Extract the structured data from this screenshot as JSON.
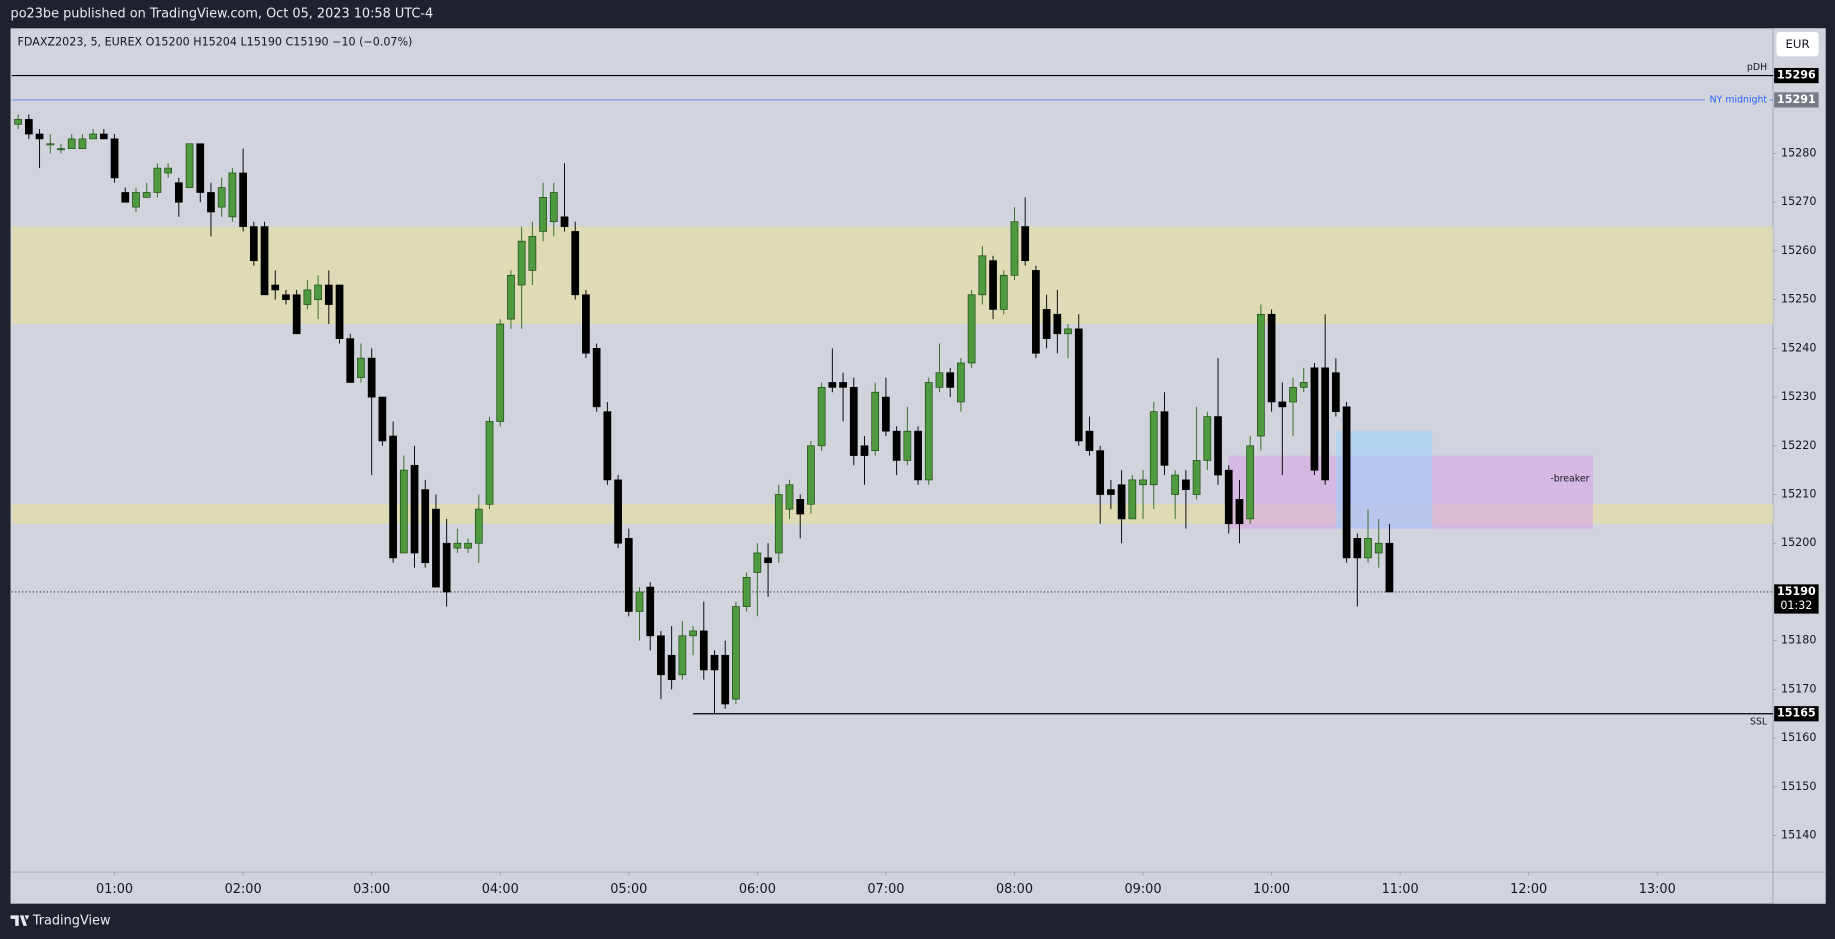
{
  "header": {
    "title": "po23be published on TradingView.com, Oct 05, 2023 10:58 UTC-4"
  },
  "footer": {
    "brand": "TradingView"
  },
  "chart_data": {
    "type": "candlestick",
    "legend": "FDAXZ2023, 5, EUREX  O15200  H15204  L15190  C15190  −10 (−0.07%)",
    "currency": "EUR",
    "up_color": "#4f9a3e",
    "down_color": "#000000",
    "x": [
      "00:15",
      "00:20",
      "00:25",
      "00:30",
      "00:35",
      "00:40",
      "00:45",
      "00:50",
      "00:55",
      "01:00",
      "01:05",
      "01:10",
      "01:15",
      "01:20",
      "01:25",
      "01:30",
      "01:35",
      "01:40",
      "01:45",
      "01:50",
      "01:55",
      "02:00",
      "02:05",
      "02:10",
      "02:15",
      "02:20",
      "02:25",
      "02:30",
      "02:35",
      "02:40",
      "02:45",
      "02:50",
      "02:55",
      "03:00",
      "03:05",
      "03:10",
      "03:15",
      "03:20",
      "03:25",
      "03:30",
      "03:35",
      "03:40",
      "03:45",
      "03:50",
      "03:55",
      "04:00",
      "04:05",
      "04:10",
      "04:15",
      "04:20",
      "04:25",
      "04:30",
      "04:35",
      "04:40",
      "04:45",
      "04:50",
      "04:55",
      "05:00",
      "05:05",
      "05:10",
      "05:15",
      "05:20",
      "05:25",
      "05:30",
      "05:35",
      "05:40",
      "05:45",
      "05:50",
      "05:55",
      "06:00",
      "06:05",
      "06:10",
      "06:15",
      "06:20",
      "06:25",
      "06:30",
      "06:35",
      "06:40",
      "06:45",
      "06:50",
      "06:55",
      "07:00",
      "07:05",
      "07:10",
      "07:15",
      "07:20",
      "07:25",
      "07:30",
      "07:35",
      "07:40",
      "07:45",
      "07:50",
      "07:55",
      "08:00",
      "08:05",
      "08:10",
      "08:15",
      "08:20",
      "08:25",
      "08:30",
      "08:35",
      "08:40",
      "08:45",
      "08:50",
      "08:55",
      "09:00",
      "09:05",
      "09:10",
      "09:15",
      "09:20",
      "09:25",
      "09:30",
      "09:35",
      "09:40",
      "09:45",
      "09:50",
      "09:55",
      "10:00",
      "10:05",
      "10:10",
      "10:15",
      "10:20",
      "10:25",
      "10:30",
      "10:35",
      "10:40",
      "10:45",
      "10:50",
      "10:55"
    ],
    "open": [
      15286,
      15287,
      15284,
      15282,
      15281,
      15281,
      15281,
      15283,
      15284,
      15283,
      15272,
      15269,
      15271,
      15272,
      15276,
      15274,
      15273,
      15282,
      15272,
      15269,
      15267,
      15276,
      15265,
      15265,
      15253,
      15251,
      15251,
      15249,
      15250,
      15253,
      15253,
      15242,
      15234,
      15238,
      15230,
      15222,
      15198,
      15216,
      15211,
      15207,
      15200,
      15199,
      15199,
      15200,
      15208,
      15225,
      15246,
      15253,
      15256,
      15264,
      15266,
      15267,
      15264,
      15251,
      15240,
      15227,
      15213,
      15201,
      15186,
      15191,
      15181,
      15177,
      15173,
      15181,
      15182,
      15177,
      15177,
      15168,
      15187,
      15194,
      15197,
      15198,
      15207,
      15209,
      15208,
      15220,
      15233,
      15233,
      15232,
      15220,
      15219,
      15230,
      15223,
      15217,
      15223,
      15213,
      15232,
      15235,
      15229,
      15237,
      15251,
      15258,
      15248,
      15255,
      15265,
      15256,
      15248,
      15247,
      15243,
      15244,
      15223,
      15219,
      15211,
      15212,
      15205,
      15212,
      15212,
      15227,
      15210,
      15213,
      15210,
      15217,
      15226,
      15215,
      15209,
      15205,
      15222,
      15247,
      15229,
      15229,
      15232,
      15236,
      15236,
      15235,
      15228,
      15201,
      15197,
      15198,
      15200
    ],
    "high": [
      15288,
      15288,
      15285,
      15284,
      15282,
      15284,
      15284,
      15285,
      15285,
      15284,
      15273,
      15273,
      15274,
      15278,
      15278,
      15275,
      15282,
      15282,
      15274,
      15275,
      15277,
      15281,
      15266,
      15266,
      15256,
      15252,
      15252,
      15254,
      15255,
      15256,
      15253,
      15243,
      15241,
      15240,
      15230,
      15225,
      15218,
      15220,
      15213,
      15210,
      15205,
      15203,
      15201,
      15210,
      15226,
      15246,
      15256,
      15265,
      15266,
      15274,
      15274,
      15278,
      15266,
      15252,
      15241,
      15229,
      15214,
      15203,
      15191,
      15192,
      15182,
      15183,
      15184,
      15183,
      15188,
      15178,
      15180,
      15188,
      15194,
      15200,
      15200,
      15212,
      15213,
      15210,
      15221,
      15233,
      15240,
      15235,
      15234,
      15222,
      15233,
      15234,
      15224,
      15228,
      15224,
      15234,
      15241,
      15236,
      15238,
      15252,
      15261,
      15259,
      15256,
      15269,
      15271,
      15257,
      15251,
      15252,
      15245,
      15247,
      15226,
      15220,
      15213,
      15215,
      15214,
      15215,
      15229,
      15231,
      15215,
      15215,
      15228,
      15227,
      15238,
      15216,
      15213,
      15222,
      15249,
      15248,
      15233,
      15234,
      15236,
      15237,
      15247,
      15238,
      15229,
      15202,
      15207,
      15205,
      15204
    ],
    "low": [
      15285,
      15283,
      15277,
      15280,
      15280,
      15281,
      15281,
      15283,
      15283,
      15274,
      15270,
      15268,
      15271,
      15271,
      15275,
      15267,
      15273,
      15270,
      15263,
      15267,
      15266,
      15264,
      15257,
      15251,
      15250,
      15249,
      15243,
      15248,
      15246,
      15245,
      15241,
      15233,
      15233,
      15214,
      15220,
      15196,
      15198,
      15195,
      15195,
      15191,
      15187,
      15198,
      15198,
      15196,
      15207,
      15224,
      15244,
      15244,
      15253,
      15262,
      15263,
      15264,
      15250,
      15238,
      15227,
      15212,
      15199,
      15185,
      15180,
      15178,
      15168,
      15170,
      15172,
      15177,
      15172,
      15165,
      15166,
      15167,
      15186,
      15185,
      15189,
      15196,
      15205,
      15201,
      15206,
      15219,
      15231,
      15225,
      15216,
      15212,
      15218,
      15222,
      15214,
      15216,
      15212,
      15212,
      15231,
      15230,
      15227,
      15236,
      15249,
      15246,
      15247,
      15254,
      15257,
      15238,
      15240,
      15239,
      15238,
      15220,
      15218,
      15204,
      15207,
      15200,
      15205,
      15205,
      15207,
      15214,
      15205,
      15203,
      15209,
      15215,
      15212,
      15202,
      15200,
      15204,
      15219,
      15227,
      15214,
      15222,
      15231,
      15214,
      15212,
      15226,
      15196,
      15187,
      15196,
      15195,
      15190
    ],
    "close": [
      15287,
      15284,
      15283,
      15282,
      15281,
      15283,
      15283,
      15284,
      15283,
      15275,
      15270,
      15272,
      15272,
      15277,
      15277,
      15270,
      15282,
      15272,
      15268,
      15273,
      15276,
      15265,
      15258,
      15251,
      15252,
      15250,
      15243,
      15252,
      15253,
      15249,
      15242,
      15233,
      15238,
      15230,
      15221,
      15197,
      15215,
      15198,
      15196,
      15191,
      15190,
      15200,
      15200,
      15207,
      15225,
      15245,
      15255,
      15262,
      15263,
      15271,
      15272,
      15265,
      15251,
      15239,
      15228,
      15213,
      15200,
      15186,
      15190,
      15181,
      15173,
      15172,
      15181,
      15182,
      15174,
      15174,
      15167,
      15187,
      15193,
      15198,
      15196,
      15210,
      15212,
      15206,
      15220,
      15232,
      15232,
      15232,
      15218,
      15218,
      15231,
      15223,
      15217,
      15223,
      15213,
      15233,
      15235,
      15232,
      15237,
      15251,
      15259,
      15248,
      15255,
      15266,
      15258,
      15239,
      15242,
      15243,
      15244,
      15221,
      15219,
      15210,
      15210,
      15205,
      15213,
      15213,
      15227,
      15216,
      15214,
      15211,
      15217,
      15226,
      15214,
      15204,
      15204,
      15220,
      15247,
      15229,
      15228,
      15232,
      15233,
      15215,
      15213,
      15227,
      15197,
      15197,
      15201,
      15200,
      15190
    ],
    "xlim": [
      "00:12",
      "13:54"
    ],
    "xticks": [
      "01:00",
      "02:00",
      "03:00",
      "04:00",
      "05:00",
      "06:00",
      "07:00",
      "08:00",
      "09:00",
      "10:00",
      "11:00",
      "12:00",
      "13:00"
    ],
    "ylim": [
      15132.5,
      15305.7
    ],
    "yticks": [
      15140,
      15150,
      15160,
      15170,
      15180,
      15190,
      15200,
      15210,
      15220,
      15230,
      15240,
      15250,
      15260,
      15270,
      15280
    ],
    "zones": [
      {
        "low": 15245,
        "high": 15265,
        "color": "#e2deaa"
      },
      {
        "low": 15204,
        "high": 15208,
        "color": "#e2deaa"
      },
      {
        "low": 15203,
        "high": 15218,
        "from": "09:40",
        "to": "12:30",
        "color": "#d9a3e8",
        "label": "-breaker"
      },
      {
        "low": 15203,
        "high": 15223,
        "from": "10:30",
        "to": "11:15",
        "color": "#9fd0ff"
      }
    ],
    "levels": [
      {
        "name": "pDH",
        "value": 15296,
        "color": "#000000",
        "tag_color": "#000000"
      },
      {
        "name": "NY midnight",
        "value": 15291,
        "color": "#2962ff",
        "tag_color": "#787b86"
      },
      {
        "name": "SSL",
        "value": 15165,
        "from": "05:30",
        "color": "#000000",
        "tag_color": "#000000"
      }
    ],
    "last": {
      "value": 15190,
      "countdown": "01:32",
      "color": "#000000"
    }
  }
}
